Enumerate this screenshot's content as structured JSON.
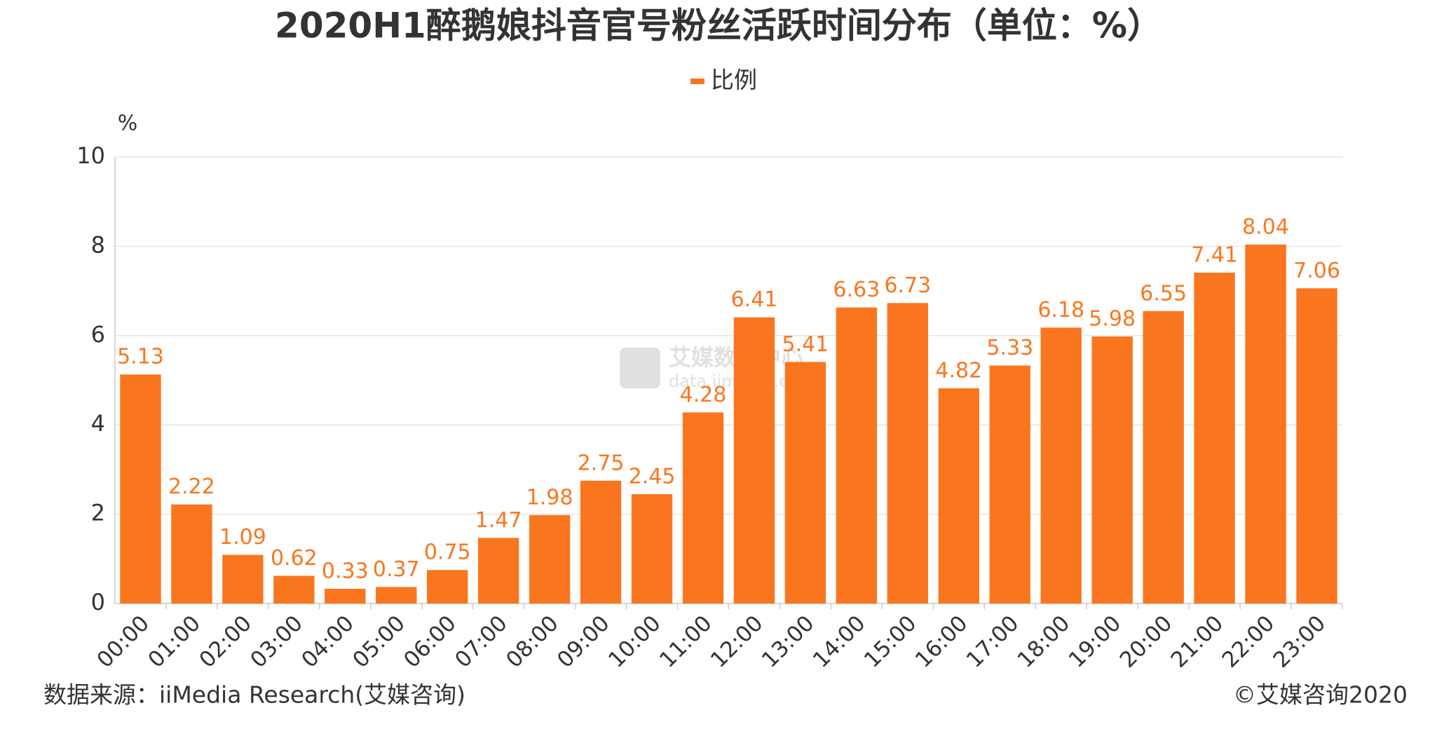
{
  "chart_data": {
    "type": "bar",
    "title": "2020H1醉鹅娘抖音官号粉丝活跃时间分布（单位：%）",
    "y_unit": "%",
    "categories": [
      "00:00",
      "01:00",
      "02:00",
      "03:00",
      "04:00",
      "05:00",
      "06:00",
      "07:00",
      "08:00",
      "09:00",
      "10:00",
      "11:00",
      "12:00",
      "13:00",
      "14:00",
      "15:00",
      "16:00",
      "17:00",
      "18:00",
      "19:00",
      "20:00",
      "21:00",
      "22:00",
      "23:00"
    ],
    "series": [
      {
        "name": "比例",
        "color": "#fa761e",
        "values": [
          5.13,
          2.22,
          1.09,
          0.62,
          0.33,
          0.37,
          0.75,
          1.47,
          1.98,
          2.75,
          2.45,
          4.28,
          6.41,
          5.41,
          6.63,
          6.73,
          4.82,
          5.33,
          6.18,
          5.98,
          6.55,
          7.41,
          8.04,
          7.06
        ]
      }
    ],
    "ylim": [
      0,
      10
    ],
    "yticks": [
      0,
      2,
      4,
      6,
      8,
      10
    ],
    "grid": true,
    "legend": "top",
    "source": "数据来源：iiMedia Research(艾媒咨询)",
    "copyright": "©艾媒咨询2020",
    "watermark": [
      "艾媒数据中心",
      "data.iimedia.cn"
    ]
  }
}
